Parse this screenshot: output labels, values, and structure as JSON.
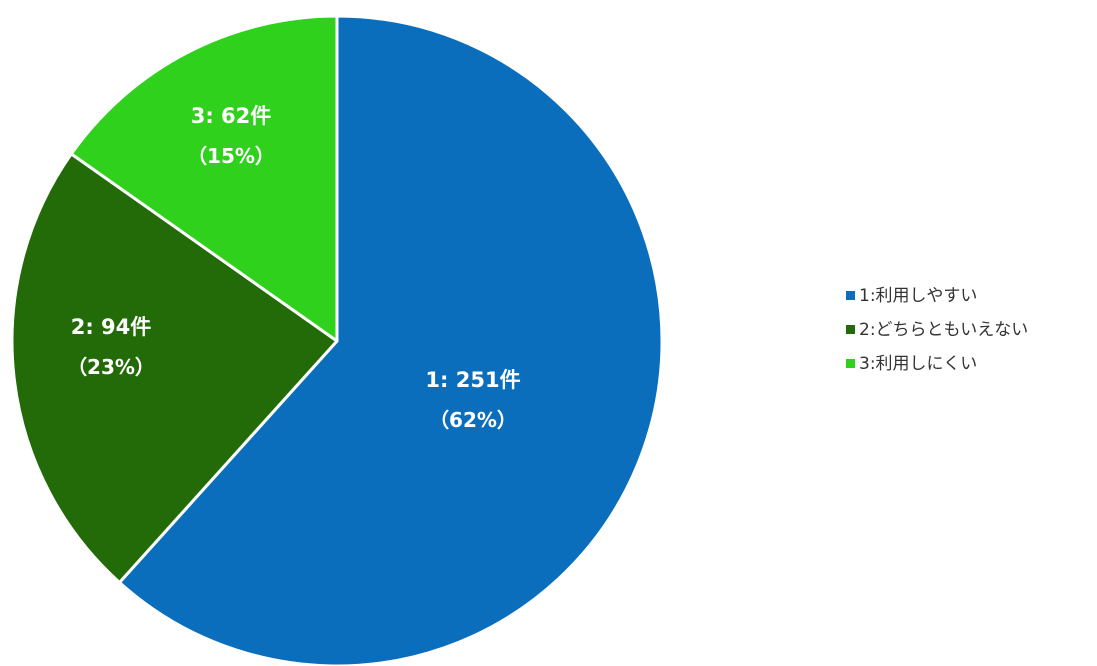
{
  "chart_data": {
    "type": "pie",
    "categories": [
      "1:利用しやすい",
      "2:どちらともいえない",
      "3:利用しにくい"
    ],
    "values": [
      251,
      94,
      62
    ],
    "percentages": [
      62,
      23,
      15
    ],
    "colors": [
      "#0a6ebd",
      "#236b08",
      "#2fd11c"
    ],
    "slice_labels": [
      {
        "count": "1: 251件",
        "pct": "（62%）"
      },
      {
        "count": "2: 94件",
        "pct": "（23%）"
      },
      {
        "count": "3: 62件",
        "pct": "（15%）"
      }
    ],
    "start_angle": "12 o'clock",
    "direction": "clockwise",
    "legend_position": "right"
  }
}
